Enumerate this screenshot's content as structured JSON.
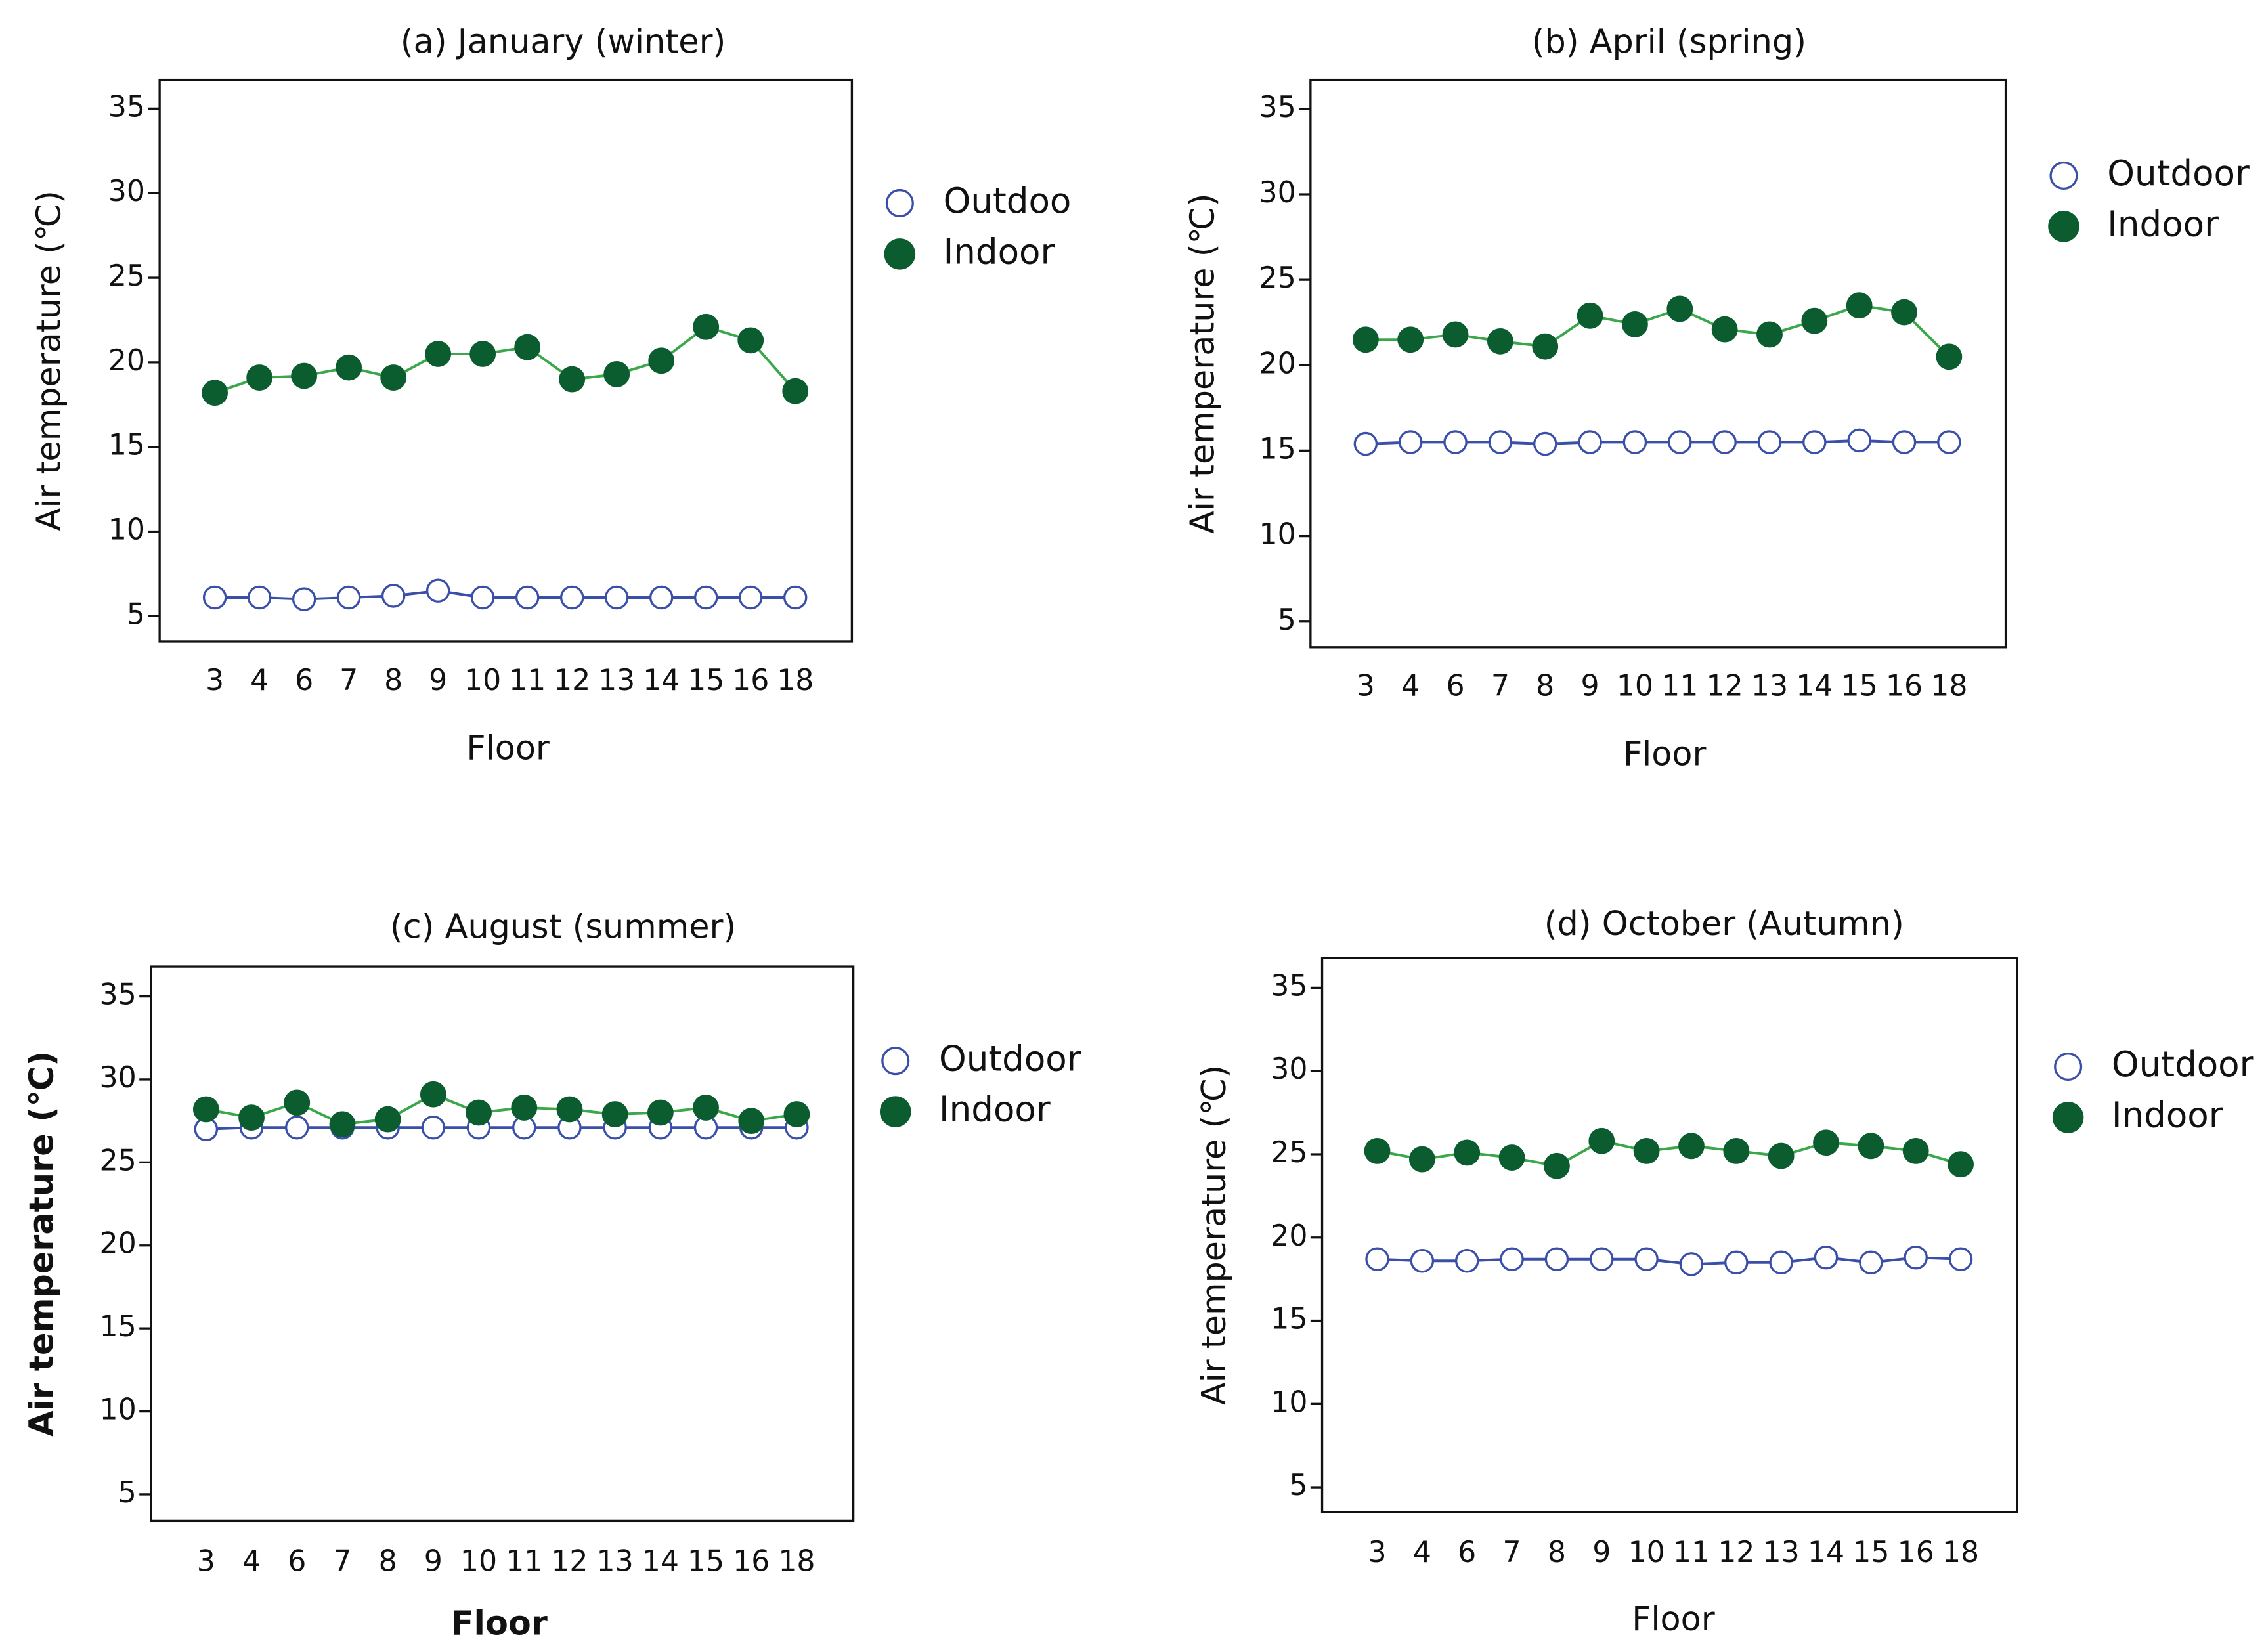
{
  "chart_data": [
    {
      "type": "line",
      "title": "(a) January (winter)",
      "y_label": "Air temperature (℃)",
      "x_label": "Floor",
      "bold_labels": false,
      "categories": [
        "3",
        "4",
        "6",
        "7",
        "8",
        "9",
        "10",
        "11",
        "12",
        "13",
        "14",
        "15",
        "16",
        "18"
      ],
      "ylim": [
        3.5,
        36.7
      ],
      "yticks": [
        5,
        10,
        15,
        20,
        25,
        30,
        35
      ],
      "series": [
        {
          "name": "Outdoo",
          "color": "#3a4fa8",
          "marker": "open",
          "values": [
            6.1,
            6.1,
            6.0,
            6.1,
            6.2,
            6.5,
            6.1,
            6.1,
            6.1,
            6.1,
            6.1,
            6.1,
            6.1,
            6.1
          ]
        },
        {
          "name": "Indoor",
          "color": "#0b5c2e",
          "line_color": "#3aa84a",
          "marker": "filled",
          "values": [
            18.2,
            19.1,
            19.2,
            19.7,
            19.1,
            20.5,
            20.5,
            20.9,
            19.0,
            19.3,
            20.1,
            22.1,
            21.3,
            18.3
          ]
        }
      ]
    },
    {
      "type": "line",
      "title": "(b) April (spring)",
      "y_label": "Air temperature (℃)",
      "x_label": "Floor",
      "bold_labels": false,
      "categories": [
        "3",
        "4",
        "6",
        "7",
        "8",
        "9",
        "10",
        "11",
        "12",
        "13",
        "14",
        "15",
        "16",
        "18"
      ],
      "ylim": [
        3.5,
        36.7
      ],
      "yticks": [
        5,
        10,
        15,
        20,
        25,
        30,
        35
      ],
      "series": [
        {
          "name": "Outdoor",
          "color": "#3a4fa8",
          "marker": "open",
          "values": [
            15.4,
            15.5,
            15.5,
            15.5,
            15.4,
            15.5,
            15.5,
            15.5,
            15.5,
            15.5,
            15.5,
            15.6,
            15.5,
            15.5
          ]
        },
        {
          "name": "Indoor",
          "color": "#0b5c2e",
          "line_color": "#3aa84a",
          "marker": "filled",
          "values": [
            21.5,
            21.5,
            21.8,
            21.4,
            21.1,
            22.9,
            22.4,
            23.3,
            22.1,
            21.8,
            22.6,
            23.5,
            23.1,
            20.5
          ]
        }
      ]
    },
    {
      "type": "line",
      "title": "(c) August (summer)",
      "y_label": "Air temperature (℃)",
      "x_label": "Floor",
      "bold_labels": true,
      "categories": [
        "3",
        "4",
        "6",
        "7",
        "8",
        "9",
        "10",
        "11",
        "12",
        "13",
        "14",
        "15",
        "16",
        "18"
      ],
      "ylim": [
        3.4,
        36.8
      ],
      "yticks": [
        5,
        10,
        15,
        20,
        25,
        30,
        35
      ],
      "series": [
        {
          "name": "Outdoor",
          "color": "#3a4fa8",
          "marker": "open",
          "values": [
            27.0,
            27.1,
            27.1,
            27.1,
            27.1,
            27.1,
            27.1,
            27.1,
            27.1,
            27.1,
            27.1,
            27.1,
            27.1,
            27.1
          ]
        },
        {
          "name": "Indoor",
          "color": "#0b5c2e",
          "line_color": "#3aa84a",
          "marker": "filled",
          "values": [
            28.2,
            27.7,
            28.6,
            27.3,
            27.6,
            29.1,
            28.0,
            28.3,
            28.2,
            27.9,
            28.0,
            28.3,
            27.5,
            27.9
          ]
        }
      ]
    },
    {
      "type": "line",
      "title": "(d) October (Autumn)",
      "y_label": "Air temperature (℃)",
      "x_label": "Floor",
      "bold_labels": false,
      "categories": [
        "3",
        "4",
        "6",
        "7",
        "8",
        "9",
        "10",
        "11",
        "12",
        "13",
        "14",
        "15",
        "16",
        "18"
      ],
      "ylim": [
        3.5,
        36.8
      ],
      "yticks": [
        5,
        10,
        15,
        20,
        25,
        30,
        35
      ],
      "series": [
        {
          "name": "Outdoor",
          "color": "#3a4fa8",
          "marker": "open",
          "values": [
            18.7,
            18.6,
            18.6,
            18.7,
            18.7,
            18.7,
            18.7,
            18.4,
            18.5,
            18.5,
            18.8,
            18.5,
            18.8,
            18.7
          ]
        },
        {
          "name": "Indoor",
          "color": "#0b5c2e",
          "line_color": "#3aa84a",
          "marker": "filled",
          "values": [
            25.2,
            24.7,
            25.1,
            24.8,
            24.3,
            25.8,
            25.2,
            25.5,
            25.2,
            24.9,
            25.7,
            25.5,
            25.2,
            24.4
          ]
        }
      ]
    }
  ]
}
